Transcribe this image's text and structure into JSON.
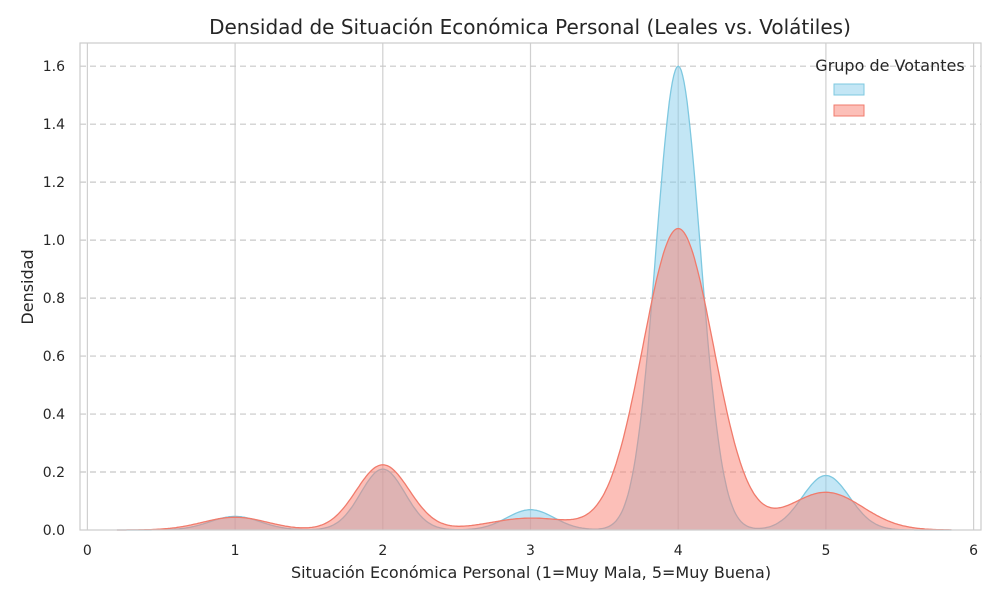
{
  "chart_data": {
    "type": "area",
    "title": "Densidad de Situación Económica Personal (Leales vs. Volátiles)",
    "xlabel": "Situación Económica Personal (1=Muy Mala, 5=Muy Buena)",
    "ylabel": "Densidad",
    "xlim": [
      -0.05,
      6.05
    ],
    "ylim": [
      0,
      1.68
    ],
    "xticks": [
      "0",
      "1",
      "2",
      "3",
      "4",
      "5",
      "6"
    ],
    "yticks": [
      "0.0",
      "0.2",
      "0.4",
      "0.6",
      "0.8",
      "1.0",
      "1.2",
      "1.4",
      "1.6"
    ],
    "grid": true,
    "legend": {
      "title": "Grupo de Votantes",
      "position": "top-right"
    },
    "series": [
      {
        "name": "",
        "color": "#87ceeb",
        "fill_opacity": 0.5,
        "components": [
          {
            "mu": 1,
            "sigma": 0.17,
            "height": 0.047
          },
          {
            "mu": 2,
            "sigma": 0.15,
            "height": 0.21
          },
          {
            "mu": 3,
            "sigma": 0.16,
            "height": 0.07
          },
          {
            "mu": 4,
            "sigma": 0.15,
            "height": 1.6
          },
          {
            "mu": 5,
            "sigma": 0.16,
            "height": 0.188
          }
        ]
      },
      {
        "name": "",
        "color": "#fa8072",
        "fill_opacity": 0.5,
        "components": [
          {
            "mu": 1,
            "sigma": 0.22,
            "height": 0.044
          },
          {
            "mu": 2,
            "sigma": 0.18,
            "height": 0.225
          },
          {
            "mu": 3,
            "sigma": 0.28,
            "height": 0.041
          },
          {
            "mu": 4,
            "sigma": 0.24,
            "height": 1.04
          },
          {
            "mu": 5,
            "sigma": 0.25,
            "height": 0.13
          }
        ]
      }
    ]
  }
}
